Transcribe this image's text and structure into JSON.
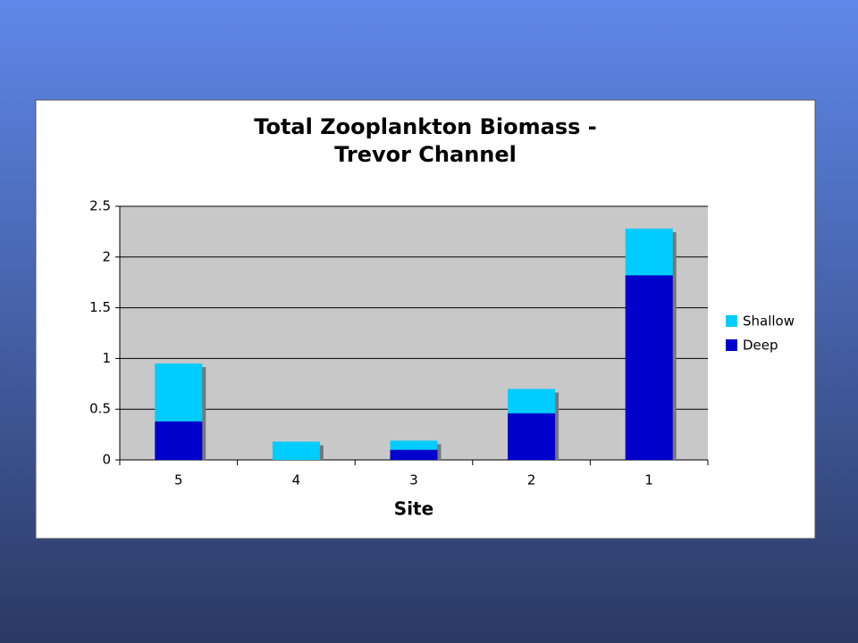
{
  "chart_data": {
    "type": "stacked_bar",
    "title": [
      "Total Zooplankton Biomass -",
      "Trevor Channel"
    ],
    "x_label": "Site",
    "categories": [
      "5",
      "4",
      "3",
      "2",
      "1"
    ],
    "series": [
      {
        "name": "Deep",
        "color": "#0000cc",
        "values": [
          0.38,
          0,
          0.1,
          0.46,
          1.82
        ]
      },
      {
        "name": "Shallow",
        "color": "#00ccff",
        "values": [
          0.57,
          0.18,
          0.09,
          0.24,
          0.46
        ]
      }
    ],
    "ylim": [
      0,
      2.5
    ],
    "yticks": [
      0,
      0.5,
      1,
      1.5,
      2,
      2.5
    ],
    "grid": true,
    "legend": "right"
  }
}
